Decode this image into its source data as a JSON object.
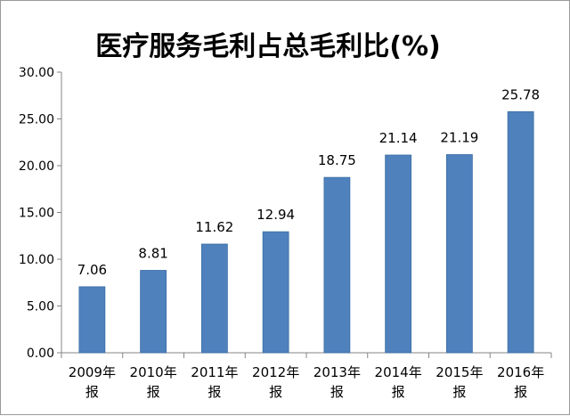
{
  "chart_data": {
    "type": "bar",
    "title": "医疗服务毛利占总毛利比(%)",
    "categories": [
      [
        "2009年",
        "报"
      ],
      [
        "2010年",
        "报"
      ],
      [
        "2011年",
        "报"
      ],
      [
        "2012年",
        "报"
      ],
      [
        "2013年",
        "报"
      ],
      [
        "2014年",
        "报"
      ],
      [
        "2015年",
        "报"
      ],
      [
        "2016年",
        "报"
      ]
    ],
    "values": [
      7.06,
      8.81,
      11.62,
      12.94,
      18.75,
      21.14,
      21.19,
      25.78
    ],
    "data_labels": [
      "7.06",
      "8.81",
      "11.62",
      "12.94",
      "18.75",
      "21.14",
      "21.19",
      "25.78"
    ],
    "yticks": [
      "0.00",
      "5.00",
      "10.00",
      "15.00",
      "20.00",
      "25.00",
      "30.00"
    ],
    "ylim": [
      0,
      30
    ],
    "xlabel": "",
    "ylabel": "",
    "grid": false,
    "legend": "none",
    "bar_color": "#4f81bd"
  }
}
